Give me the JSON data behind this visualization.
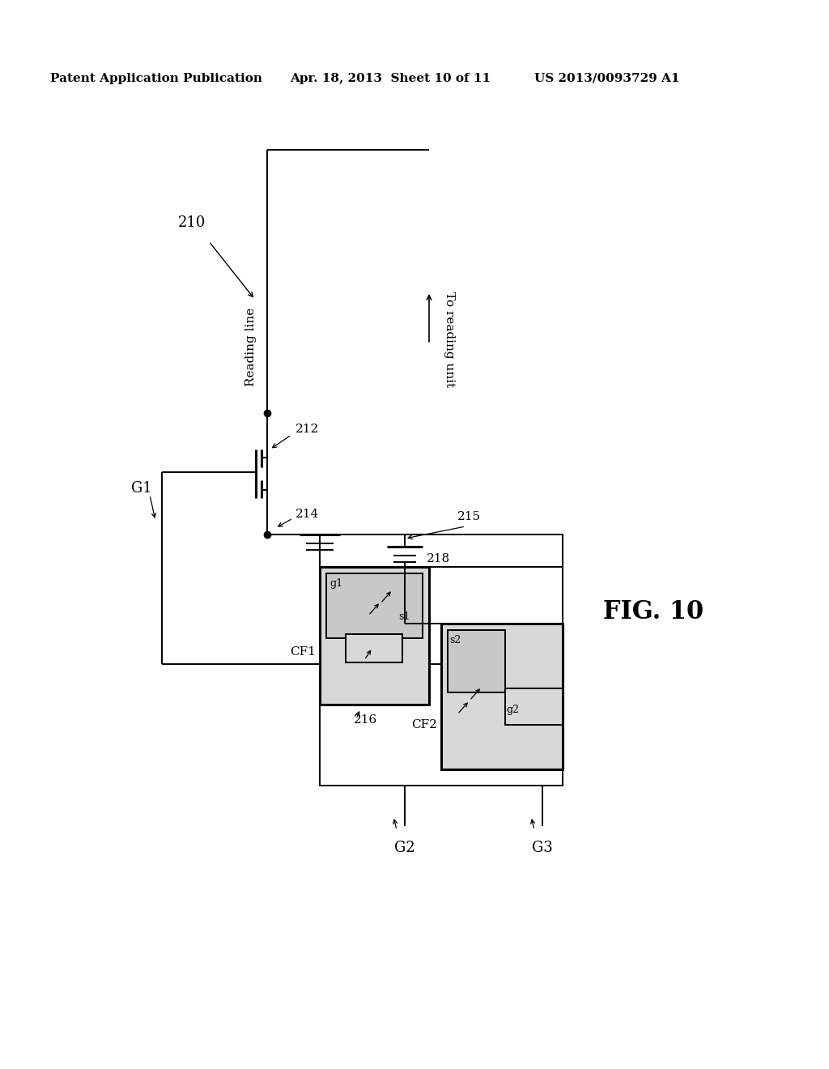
{
  "bg_color": "#ffffff",
  "header_left": "Patent Application Publication",
  "header_mid": "Apr. 18, 2013  Sheet 10 of 11",
  "header_right": "US 2013/0093729 A1",
  "fig_label": "FIG. 10",
  "lc": "#000000",
  "fc_light": "#d8d8d8",
  "lw": 1.4,
  "tlw": 2.2
}
